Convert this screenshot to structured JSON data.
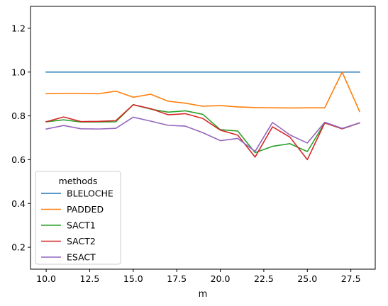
{
  "chart_data": {
    "type": "line",
    "title": "",
    "xlabel": "m",
    "ylabel": "",
    "xlim": [
      9.1,
      28.9
    ],
    "ylim": [
      0.1,
      1.3
    ],
    "xticks": [
      "10.0",
      "12.5",
      "15.0",
      "17.5",
      "20.0",
      "22.5",
      "25.0",
      "27.5"
    ],
    "yticks": [
      "0.2",
      "0.4",
      "0.6",
      "0.8",
      "1.0",
      "1.2"
    ],
    "grid": false,
    "legend": {
      "title": "methods",
      "placement": "lower-left"
    },
    "x": [
      10,
      11,
      12,
      13,
      14,
      15,
      16,
      17,
      18,
      19,
      20,
      21,
      22,
      23,
      24,
      25,
      26,
      27,
      28
    ],
    "series": [
      {
        "name": "BLELOCHE",
        "color": "#1f77b4",
        "values": [
          1.0,
          1.0,
          1.0,
          1.0,
          1.0,
          1.0,
          1.0,
          1.0,
          1.0,
          1.0,
          1.0,
          1.0,
          1.0,
          1.0,
          1.0,
          1.0,
          1.0,
          1.0,
          1.0
        ]
      },
      {
        "name": "PADDED",
        "color": "#ff7f0e",
        "values": [
          0.901,
          0.903,
          0.903,
          0.901,
          0.913,
          0.885,
          0.899,
          0.867,
          0.858,
          0.844,
          0.847,
          0.841,
          0.838,
          0.837,
          0.836,
          0.837,
          0.837,
          1.0,
          0.82
        ]
      },
      {
        "name": "SACT1",
        "color": "#2ca02c",
        "values": [
          0.773,
          0.782,
          0.772,
          0.772,
          0.773,
          0.851,
          0.831,
          0.817,
          0.823,
          0.807,
          0.737,
          0.731,
          0.632,
          0.661,
          0.673,
          0.637,
          0.768,
          0.741,
          0.768
        ]
      },
      {
        "name": "SACT2",
        "color": "#d62728",
        "values": [
          0.773,
          0.795,
          0.774,
          0.775,
          0.778,
          0.851,
          0.833,
          0.805,
          0.81,
          0.788,
          0.735,
          0.712,
          0.612,
          0.75,
          0.703,
          0.6,
          0.768,
          0.741,
          0.768
        ]
      },
      {
        "name": "ESACT",
        "color": "#9467bd",
        "values": [
          0.74,
          0.756,
          0.741,
          0.74,
          0.743,
          0.794,
          0.776,
          0.757,
          0.753,
          0.723,
          0.687,
          0.697,
          0.638,
          0.77,
          0.713,
          0.676,
          0.771,
          0.743,
          0.768
        ]
      }
    ]
  }
}
